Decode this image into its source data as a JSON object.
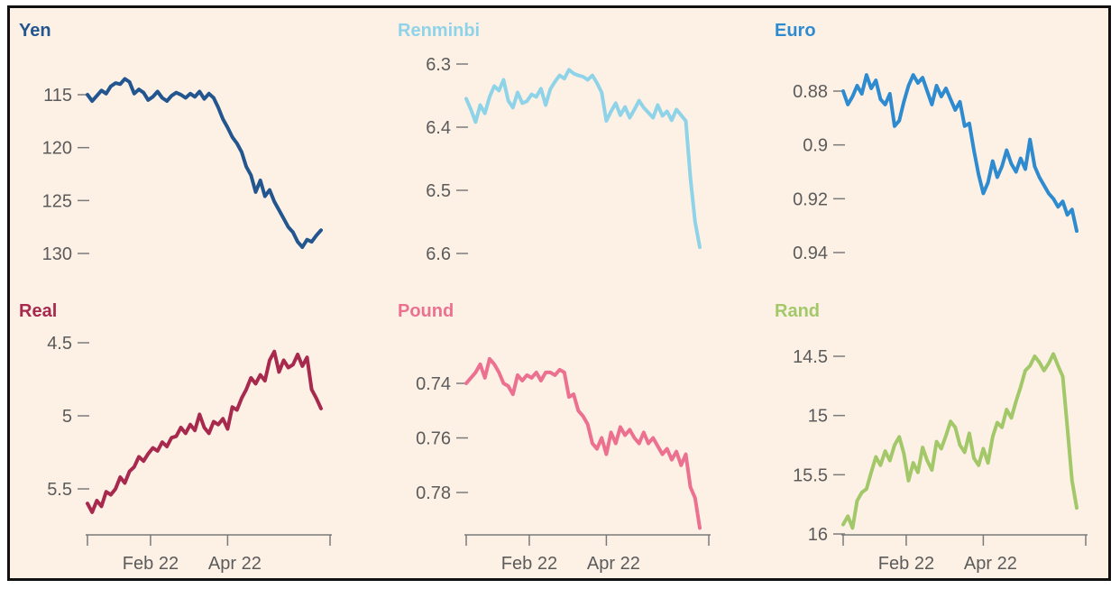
{
  "chart_data": [
    {
      "type": "line",
      "title": "Yen",
      "color": "#23558f",
      "inverted": true,
      "ylim": [
        112,
        131
      ],
      "yticks": [
        "115",
        "120",
        "125",
        "130"
      ],
      "ytick_values": [
        115,
        120,
        125,
        130
      ],
      "xlim": [
        0,
        100
      ],
      "xticks": [
        "Feb 22",
        "Apr 22"
      ],
      "xtick_positions": [
        27,
        60
      ],
      "series": [
        {
          "x": [
            0,
            2,
            4,
            6,
            8,
            10,
            12,
            14,
            16,
            18,
            20,
            22,
            24,
            26,
            28,
            30,
            32,
            34,
            36,
            38,
            40,
            42,
            44,
            46,
            48,
            50,
            52,
            54,
            56,
            58,
            60,
            62,
            64,
            66,
            68,
            70,
            72,
            74,
            76,
            78,
            80,
            82,
            84,
            86,
            88,
            90,
            92,
            94,
            96,
            98,
            100
          ],
          "values": [
            115.0,
            115.6,
            115.1,
            114.6,
            114.9,
            114.2,
            113.9,
            114.0,
            113.5,
            113.8,
            114.9,
            114.5,
            114.8,
            115.5,
            115.2,
            114.7,
            115.3,
            115.6,
            115.1,
            114.8,
            115.0,
            115.3,
            114.9,
            115.2,
            114.7,
            115.4,
            114.9,
            115.3,
            116.2,
            117.3,
            118.1,
            119.0,
            119.6,
            120.4,
            121.8,
            122.6,
            124.2,
            123.1,
            124.6,
            124.0,
            125.1,
            125.9,
            126.7,
            127.5,
            128.0,
            128.9,
            129.4,
            128.7,
            128.9,
            128.3,
            127.8
          ]
        }
      ]
    },
    {
      "type": "line",
      "title": "Renminbi",
      "color": "#8fd3e8",
      "inverted": true,
      "ylim": [
        6.28,
        6.63
      ],
      "yticks": [
        "6.3",
        "6.4",
        "6.5",
        "6.6"
      ],
      "ytick_values": [
        6.3,
        6.4,
        6.5,
        6.6
      ],
      "xlim": [
        0,
        100
      ],
      "xticks": [
        "Feb 22",
        "Apr 22"
      ],
      "xtick_positions": [
        27,
        60
      ],
      "series": [
        {
          "x": [
            0,
            2,
            4,
            6,
            8,
            10,
            12,
            14,
            16,
            18,
            20,
            22,
            24,
            26,
            28,
            30,
            32,
            34,
            36,
            38,
            40,
            42,
            44,
            46,
            48,
            50,
            52,
            54,
            56,
            58,
            60,
            62,
            64,
            66,
            68,
            70,
            72,
            74,
            76,
            78,
            80,
            82,
            84,
            86,
            88,
            90,
            92,
            94,
            96,
            98,
            100
          ],
          "values": [
            6.355,
            6.372,
            6.392,
            6.365,
            6.378,
            6.352,
            6.335,
            6.342,
            6.325,
            6.358,
            6.369,
            6.345,
            6.362,
            6.359,
            6.348,
            6.352,
            6.339,
            6.365,
            6.34,
            6.328,
            6.318,
            6.323,
            6.309,
            6.315,
            6.318,
            6.32,
            6.325,
            6.318,
            6.33,
            6.345,
            6.39,
            6.375,
            6.362,
            6.381,
            6.368,
            6.385,
            6.372,
            6.358,
            6.369,
            6.377,
            6.385,
            6.365,
            6.382,
            6.375,
            6.389,
            6.372,
            6.381,
            6.39,
            6.48,
            6.55,
            6.59
          ]
        }
      ]
    },
    {
      "type": "line",
      "title": "Euro",
      "color": "#2e8bd0",
      "inverted": true,
      "ylim": [
        0.872,
        0.948
      ],
      "yticks": [
        "0.88",
        "0.9",
        "0.92",
        "0.94"
      ],
      "ytick_values": [
        0.88,
        0.9,
        0.92,
        0.94
      ],
      "xlim": [
        0,
        100
      ],
      "xticks": [
        "Feb 22",
        "Apr 22"
      ],
      "xtick_positions": [
        27,
        60
      ],
      "series": [
        {
          "x": [
            0,
            2,
            4,
            6,
            8,
            10,
            12,
            14,
            16,
            18,
            20,
            22,
            24,
            26,
            28,
            30,
            32,
            34,
            36,
            38,
            40,
            42,
            44,
            46,
            48,
            50,
            52,
            54,
            56,
            58,
            60,
            62,
            64,
            66,
            68,
            70,
            72,
            74,
            76,
            78,
            80,
            82,
            84,
            86,
            88,
            90,
            92,
            94,
            96,
            98,
            100
          ],
          "values": [
            0.88,
            0.885,
            0.882,
            0.878,
            0.881,
            0.874,
            0.879,
            0.876,
            0.883,
            0.885,
            0.881,
            0.893,
            0.891,
            0.884,
            0.878,
            0.874,
            0.877,
            0.875,
            0.88,
            0.885,
            0.878,
            0.882,
            0.879,
            0.883,
            0.887,
            0.884,
            0.893,
            0.892,
            0.902,
            0.911,
            0.918,
            0.914,
            0.906,
            0.912,
            0.908,
            0.902,
            0.907,
            0.91,
            0.905,
            0.909,
            0.898,
            0.908,
            0.912,
            0.915,
            0.918,
            0.92,
            0.923,
            0.921,
            0.926,
            0.924,
            0.932
          ]
        }
      ]
    },
    {
      "type": "line",
      "title": "Real",
      "color": "#a8294e",
      "inverted": true,
      "ylim": [
        4.38,
        5.72
      ],
      "yticks": [
        "4.5",
        "5",
        "5.5"
      ],
      "ytick_values": [
        4.5,
        5.0,
        5.5
      ],
      "xlim": [
        0,
        100
      ],
      "xticks": [
        "Feb 22",
        "Apr 22"
      ],
      "xtick_positions": [
        27,
        60
      ],
      "series": [
        {
          "x": [
            0,
            2,
            4,
            6,
            8,
            10,
            12,
            14,
            16,
            18,
            20,
            22,
            24,
            26,
            28,
            30,
            32,
            34,
            36,
            38,
            40,
            42,
            44,
            46,
            48,
            50,
            52,
            54,
            56,
            58,
            60,
            62,
            64,
            66,
            68,
            70,
            72,
            74,
            76,
            78,
            80,
            82,
            84,
            86,
            88,
            90,
            92,
            94,
            96,
            98,
            100
          ],
          "values": [
            5.6,
            5.66,
            5.58,
            5.62,
            5.52,
            5.54,
            5.5,
            5.42,
            5.46,
            5.38,
            5.35,
            5.28,
            5.31,
            5.26,
            5.22,
            5.24,
            5.18,
            5.21,
            5.15,
            5.14,
            5.08,
            5.12,
            5.06,
            5.1,
            4.99,
            5.08,
            5.12,
            5.04,
            5.06,
            5.02,
            5.09,
            4.94,
            4.96,
            4.88,
            4.82,
            4.74,
            4.78,
            4.72,
            4.76,
            4.62,
            4.56,
            4.7,
            4.62,
            4.67,
            4.65,
            4.58,
            4.66,
            4.6,
            4.82,
            4.88,
            4.95
          ]
        }
      ]
    },
    {
      "type": "line",
      "title": "Pound",
      "color": "#ec7191",
      "inverted": true,
      "ylim": [
        0.727,
        0.791
      ],
      "yticks": [
        "0.74",
        "0.76",
        "0.78"
      ],
      "ytick_values": [
        0.74,
        0.76,
        0.78
      ],
      "xlim": [
        0,
        100
      ],
      "xticks": [
        "Feb 22",
        "Apr 22"
      ],
      "xtick_positions": [
        27,
        60
      ],
      "series": [
        {
          "x": [
            0,
            2,
            4,
            6,
            8,
            10,
            12,
            14,
            16,
            18,
            20,
            22,
            24,
            26,
            28,
            30,
            32,
            34,
            36,
            38,
            40,
            42,
            44,
            46,
            48,
            50,
            52,
            54,
            56,
            58,
            60,
            62,
            64,
            66,
            68,
            70,
            72,
            74,
            76,
            78,
            80,
            82,
            84,
            86,
            88,
            90,
            92,
            94,
            96,
            98,
            100
          ],
          "values": [
            0.74,
            0.738,
            0.736,
            0.733,
            0.738,
            0.731,
            0.733,
            0.736,
            0.74,
            0.741,
            0.744,
            0.737,
            0.739,
            0.737,
            0.738,
            0.736,
            0.739,
            0.736,
            0.736,
            0.737,
            0.735,
            0.736,
            0.745,
            0.744,
            0.75,
            0.752,
            0.755,
            0.762,
            0.764,
            0.76,
            0.766,
            0.758,
            0.762,
            0.756,
            0.759,
            0.757,
            0.76,
            0.762,
            0.758,
            0.762,
            0.76,
            0.763,
            0.766,
            0.764,
            0.768,
            0.765,
            0.77,
            0.766,
            0.778,
            0.782,
            0.793
          ]
        }
      ]
    },
    {
      "type": "line",
      "title": "Rand",
      "color": "#a3c86a",
      "inverted": true,
      "ylim": [
        14.35,
        16.03
      ],
      "yticks": [
        "14.5",
        "15",
        "15.5",
        "16"
      ],
      "ytick_values": [
        14.5,
        15.0,
        15.5,
        16.0
      ],
      "xlim": [
        0,
        100
      ],
      "xticks": [
        "Feb 22",
        "Apr 22"
      ],
      "xtick_positions": [
        27,
        60
      ],
      "series": [
        {
          "x": [
            0,
            2,
            4,
            6,
            8,
            10,
            12,
            14,
            16,
            18,
            20,
            22,
            24,
            26,
            28,
            30,
            32,
            34,
            36,
            38,
            40,
            42,
            44,
            46,
            48,
            50,
            52,
            54,
            56,
            58,
            60,
            62,
            64,
            66,
            68,
            70,
            72,
            74,
            76,
            78,
            80,
            82,
            84,
            86,
            88,
            90,
            92,
            94,
            96,
            98,
            100
          ],
          "values": [
            15.92,
            15.85,
            15.95,
            15.72,
            15.65,
            15.62,
            15.48,
            15.35,
            15.42,
            15.3,
            15.38,
            15.25,
            15.18,
            15.32,
            15.55,
            15.4,
            15.48,
            15.27,
            15.38,
            15.46,
            15.22,
            15.28,
            15.17,
            15.05,
            15.1,
            15.25,
            15.31,
            15.15,
            15.36,
            15.42,
            15.28,
            15.4,
            15.18,
            15.06,
            15.1,
            14.95,
            15.02,
            14.88,
            14.76,
            14.62,
            14.58,
            14.5,
            14.55,
            14.62,
            14.56,
            14.48,
            14.58,
            14.67,
            15.1,
            15.55,
            15.78
          ]
        }
      ]
    }
  ]
}
